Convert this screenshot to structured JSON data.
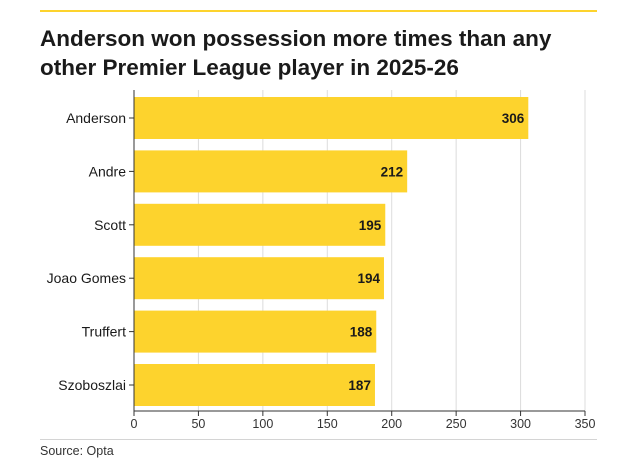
{
  "chart_data": {
    "type": "bar",
    "orientation": "horizontal",
    "title": "Anderson won possession more times than any other Premier League player in 2025-26",
    "categories": [
      "Anderson",
      "Andre",
      "Scott",
      "Joao Gomes",
      "Truffert",
      "Szoboszlai"
    ],
    "values": [
      306,
      212,
      195,
      194,
      188,
      187
    ],
    "data_labels": [
      "306",
      "212",
      "195",
      "194",
      "188",
      "187"
    ],
    "xlim": [
      0,
      350
    ],
    "xticks": [
      0,
      50,
      100,
      150,
      200,
      250,
      300,
      350
    ],
    "xtick_labels": [
      "0",
      "50",
      "100",
      "150",
      "200",
      "250",
      "300",
      "350"
    ],
    "grid": true,
    "xlabel": "",
    "ylabel": ""
  },
  "source": "Source: Opta",
  "colors": {
    "bar": "#fdd32d",
    "accent_rule": "#fdd32d",
    "grid": "#dcdcdc",
    "axis": "#333333",
    "text": "#1a1a1a"
  }
}
